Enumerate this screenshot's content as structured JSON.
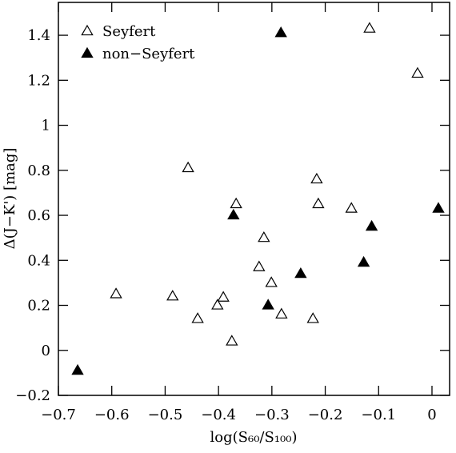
{
  "chart_data": {
    "type": "scatter",
    "xlabel": "log(S₆₀/S₁₀₀)",
    "ylabel": "Δ(J−K')  [mag]",
    "xlim": [
      -0.7,
      0.033
    ],
    "ylim": [
      -0.2,
      1.546
    ],
    "xticks": [
      {
        "value": -0.7,
        "label": "−0.7"
      },
      {
        "value": -0.6,
        "label": "−0.6"
      },
      {
        "value": -0.5,
        "label": "−0.5"
      },
      {
        "value": -0.4,
        "label": "−0.4"
      },
      {
        "value": -0.3,
        "label": "−0.3"
      },
      {
        "value": -0.2,
        "label": "−0.2"
      },
      {
        "value": -0.1,
        "label": "−0.1"
      },
      0
    ],
    "yticks": [
      {
        "value": -0.2,
        "label": "−0.2"
      },
      0,
      0.2,
      0.4,
      0.6,
      0.8,
      1,
      1.2,
      1.4
    ],
    "legend": "upper-left",
    "series": [
      {
        "name": "Seyfert",
        "color": "#000000",
        "filled": false,
        "x": [
          -0.117,
          -0.027,
          -0.457,
          -0.216,
          -0.367,
          -0.213,
          -0.151,
          -0.315,
          -0.324,
          -0.301,
          -0.592,
          -0.486,
          -0.391,
          -0.402,
          -0.439,
          -0.282,
          -0.223,
          -0.375
        ],
        "y": [
          1.43,
          1.23,
          0.81,
          0.76,
          0.65,
          0.65,
          0.63,
          0.5,
          0.37,
          0.3,
          0.25,
          0.24,
          0.235,
          0.2,
          0.14,
          0.16,
          0.14,
          0.04
        ]
      },
      {
        "name": "non−Seyfert",
        "color": "#000000",
        "filled": true,
        "x": [
          -0.283,
          -0.664,
          -0.372,
          -0.246,
          -0.307,
          -0.113,
          -0.128,
          0.012
        ],
        "y": [
          1.41,
          -0.09,
          0.6,
          0.34,
          0.2,
          0.55,
          0.39,
          0.63
        ]
      }
    ]
  }
}
